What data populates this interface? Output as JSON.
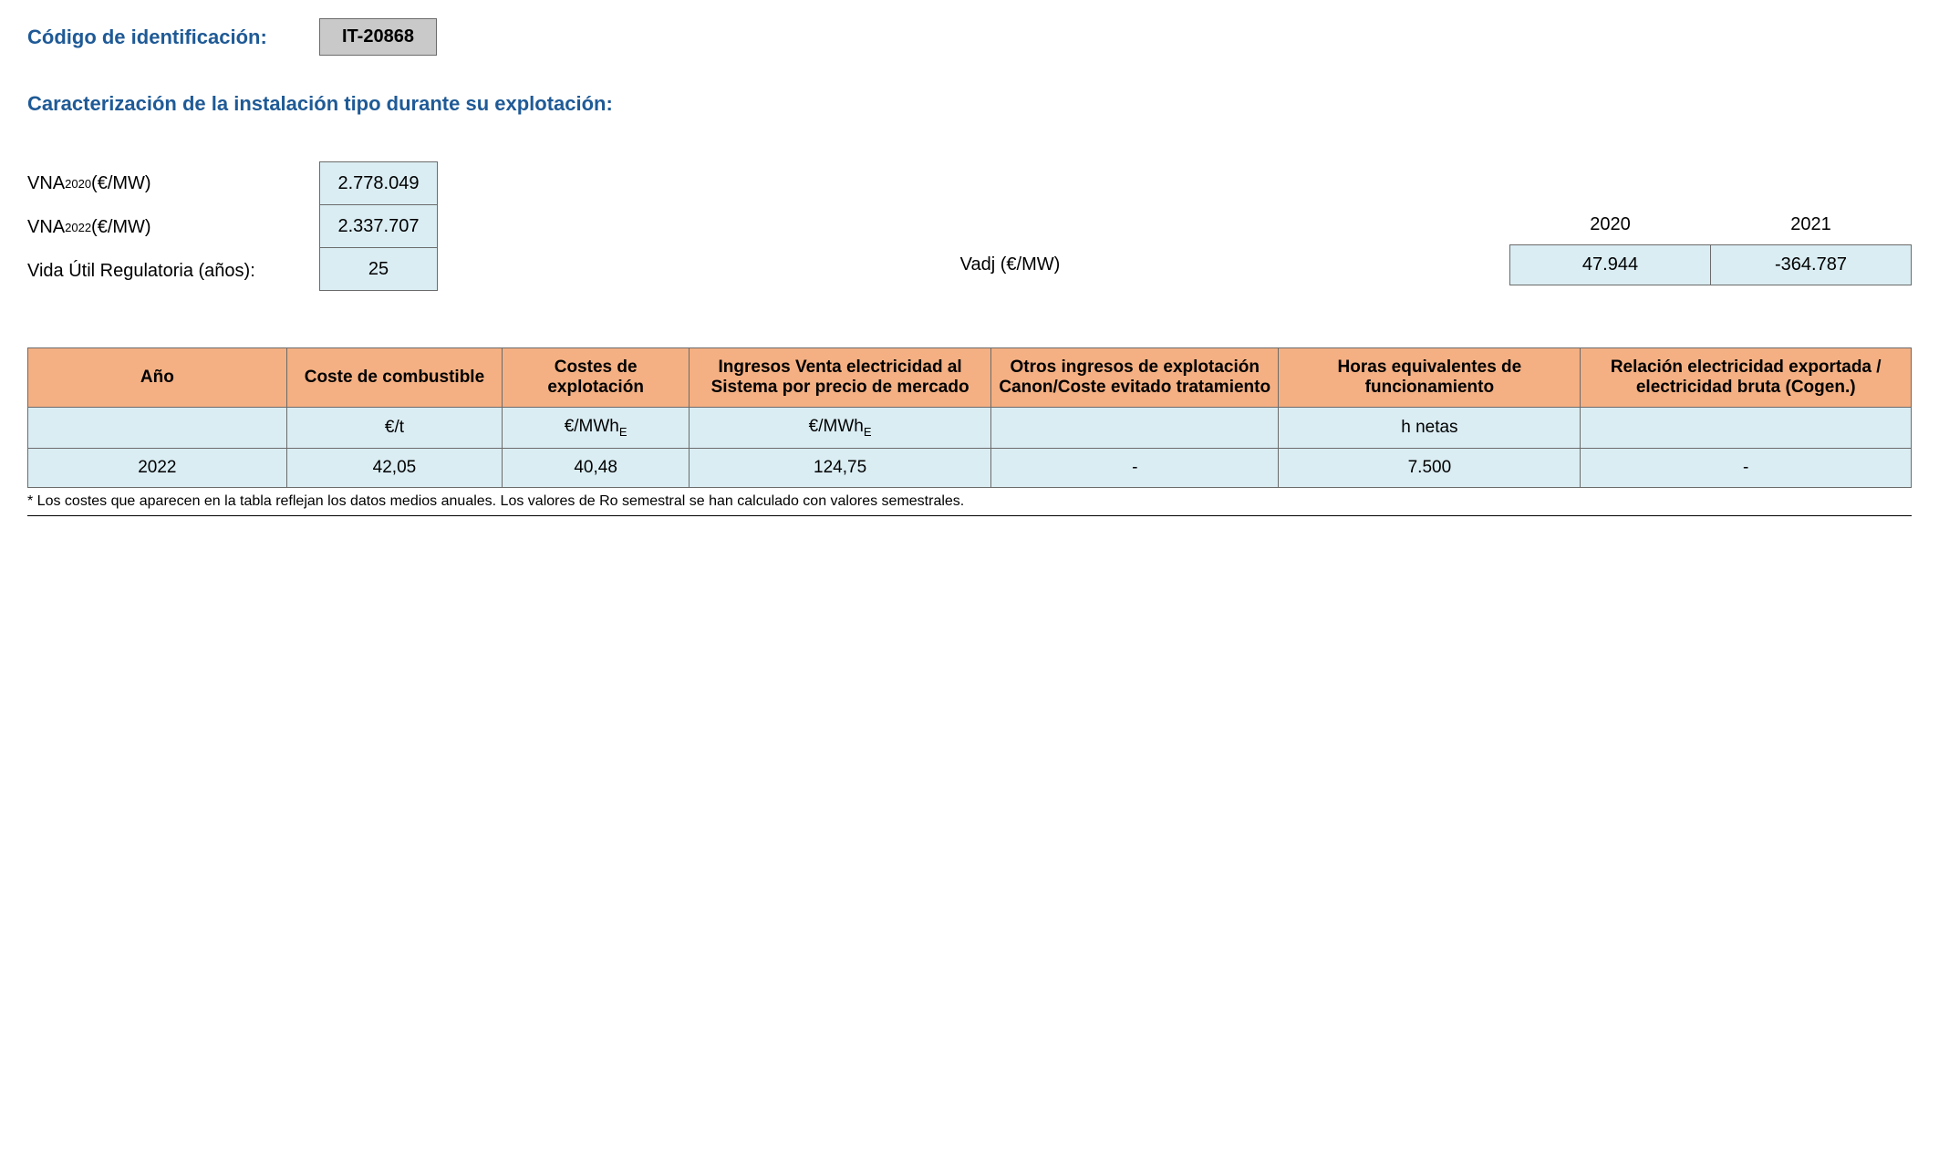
{
  "header": {
    "id_label": "Código de identificación:",
    "id_value": "IT-20868"
  },
  "section_title": "Caracterización de la instalación tipo durante su explotación:",
  "params": {
    "vna2020_label_prefix": "VNA",
    "vna2020_label_sub": "2020",
    "vna_unit": " (€/MW)",
    "vna2020_value": "2.778.049",
    "vna2022_label_sub": "2022",
    "vna2022_value": "2.337.707",
    "vida_util_label": "Vida Útil Regulatoria (años):",
    "vida_util_value": "25"
  },
  "vadj": {
    "label": "Vadj (€/MW)",
    "year1_label": "2020",
    "year2_label": "2021",
    "year1_value": "47.944",
    "year2_value": "-364.787"
  },
  "main_table": {
    "headers": {
      "ano": "Año",
      "combustible": "Coste de combustible",
      "explotacion": "Costes de explotación",
      "ingresos": "Ingresos Venta electricidad al Sistema por precio de mercado",
      "otros": "Otros ingresos de explotación Canon/Coste evitado tratamiento",
      "horas": "Horas equivalentes de funcionamiento",
      "relacion": "Relación electricidad exportada / electricidad bruta (Cogen.)"
    },
    "units": {
      "ano": "",
      "combustible": "€/t",
      "explotacion_prefix": "€/MWh",
      "explotacion_sub": "E",
      "ingresos_prefix": "€/MWh",
      "ingresos_sub": "E",
      "otros": "",
      "horas": "h netas",
      "relacion": ""
    },
    "row": {
      "ano": "2022",
      "combustible": "42,05",
      "explotacion": "40,48",
      "ingresos": "124,75",
      "otros": "-",
      "horas": "7.500",
      "relacion": "-"
    }
  },
  "footnote": "* Los costes que aparecen en la tabla reflejan los datos medios anuales. Los valores de Ro semestral se han calculado con valores semestrales.",
  "colors": {
    "header_bg": "#f4b083",
    "cell_bg": "#daedf3",
    "code_bg": "#c9c9c9",
    "border": "#6b6b6b",
    "title_color": "#1f5a96"
  }
}
